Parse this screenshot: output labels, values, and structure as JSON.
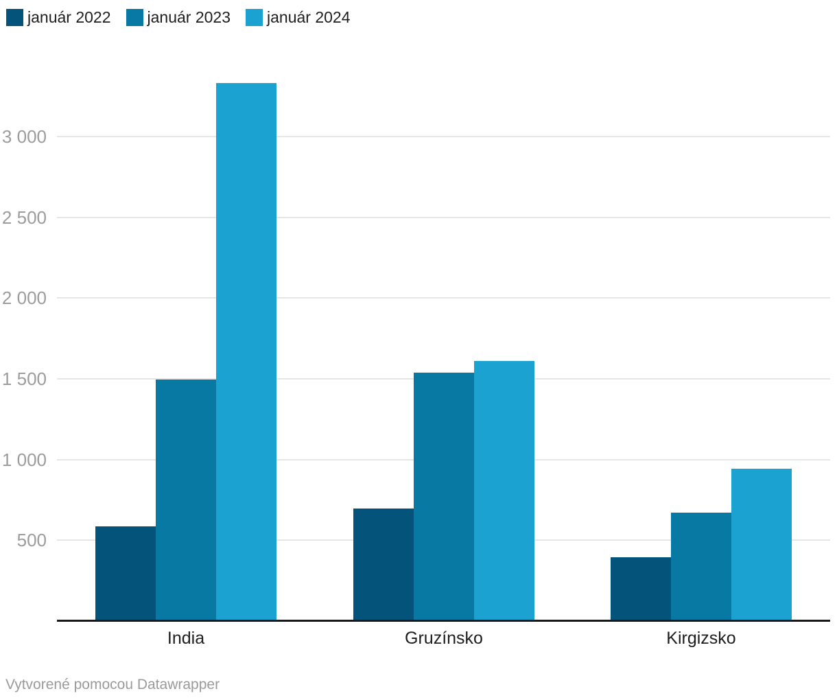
{
  "chart_data": {
    "type": "bar",
    "title": "",
    "categories": [
      "India",
      "Gruzínsko",
      "Kirgizsko"
    ],
    "series": [
      {
        "name": "január 2022",
        "color": "#04537a",
        "values": [
          585,
          695,
          395
        ]
      },
      {
        "name": "január 2023",
        "color": "#0779a3",
        "values": [
          1495,
          1540,
          670
        ]
      },
      {
        "name": "január 2024",
        "color": "#1ca2d0",
        "values": [
          3330,
          1610,
          945
        ]
      }
    ],
    "yticks": [
      {
        "label": "500",
        "value": 500
      },
      {
        "label": "1 000",
        "value": 1000
      },
      {
        "label": "1 500",
        "value": 1500
      },
      {
        "label": "2 000",
        "value": 2000
      },
      {
        "label": "2 500",
        "value": 2500
      },
      {
        "label": "3 000",
        "value": 3000
      }
    ],
    "ylim": [
      0,
      3440
    ],
    "grid": true,
    "legend_position": "top-left",
    "gridline_color": "#e6e6e6",
    "tick_color": "#9c9c9c",
    "label_color": "#1d1d1d",
    "baseline_color": "#17171b"
  },
  "footer": {
    "credit": "Vytvorené pomocou Datawrapper"
  }
}
